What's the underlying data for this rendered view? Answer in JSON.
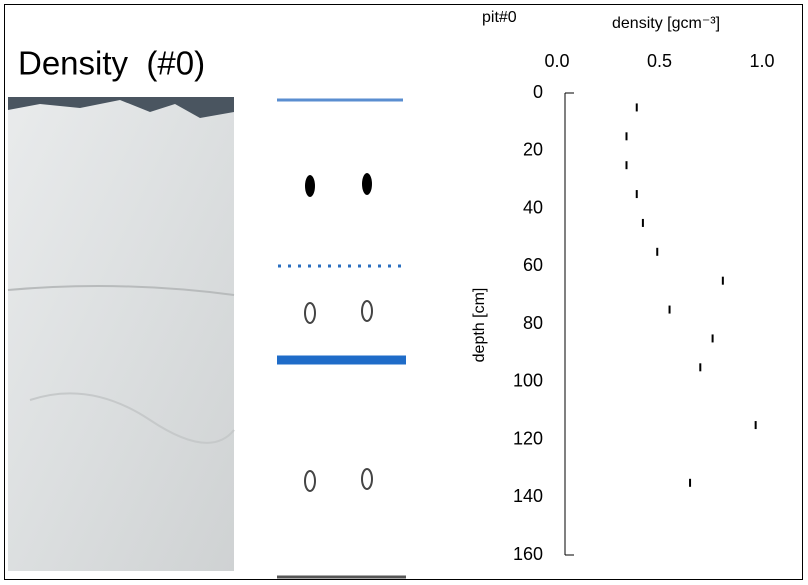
{
  "header": {
    "title": "Density  (#0)"
  },
  "chart_data": {
    "type": "scatter",
    "title": "pit#0",
    "x_label": "density [gcm⁻³]",
    "y_label": "depth [cm]",
    "x": [
      0.35,
      0.3,
      0.3,
      0.35,
      0.38,
      0.45,
      0.77,
      0.51,
      0.72,
      0.66,
      0.93,
      0.61
    ],
    "y": [
      5,
      15,
      25,
      35,
      45,
      55,
      65,
      75,
      85,
      95,
      115,
      135
    ],
    "xlim": [
      0,
      1
    ],
    "ylim": [
      0,
      160
    ],
    "xticks": [
      {
        "value": 0,
        "label": "0.0"
      },
      {
        "value": 0.5,
        "label": "0.5"
      },
      {
        "value": 1,
        "label": "1.0"
      }
    ],
    "yticks": [
      0,
      20,
      40,
      60,
      80,
      100,
      120,
      140,
      160
    ],
    "y_inverted": true,
    "color": "#000000"
  }
}
